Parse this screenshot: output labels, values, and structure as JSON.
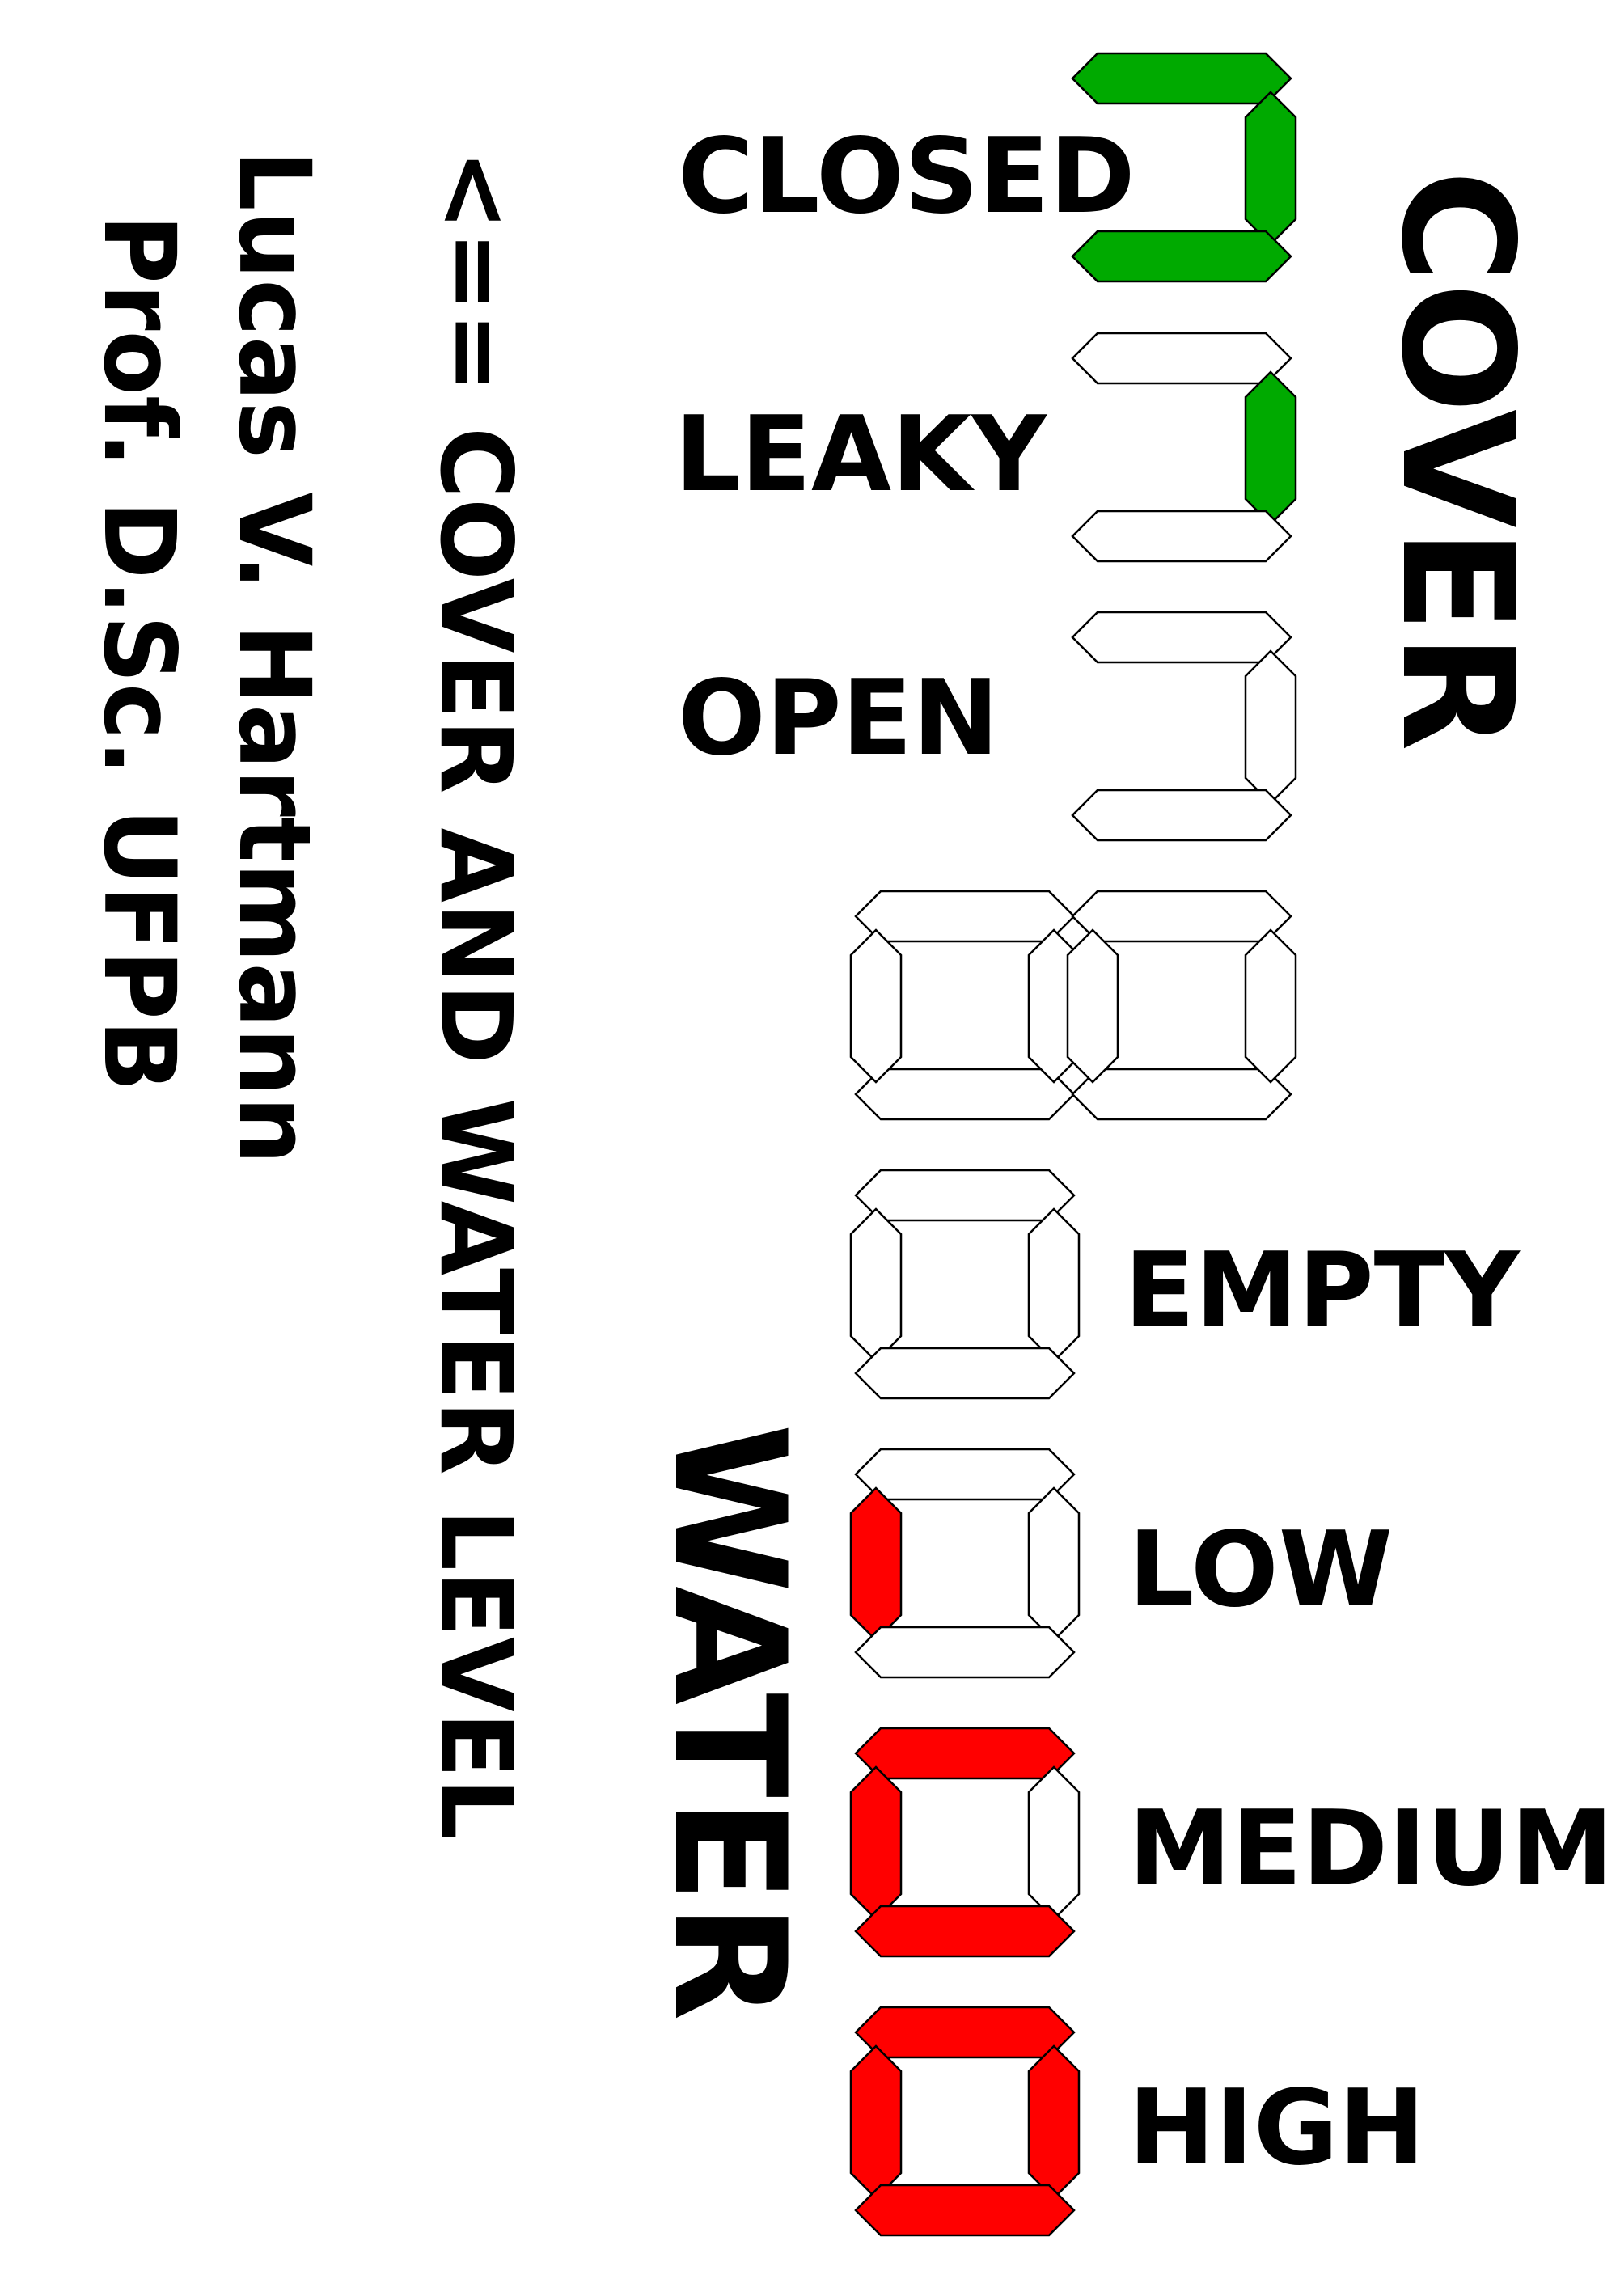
{
  "titles": {
    "cover": "COVER",
    "water": "WATER",
    "main": "<== COVER AND WATER LEVEL",
    "author": "Lucas V. Hartmann",
    "supervisor": "Prof. D.Sc. UFPB"
  },
  "cover_states": [
    {
      "label": "CLOSED",
      "segments_on": [
        "a",
        "b",
        "c"
      ]
    },
    {
      "label": "LEAKY",
      "segments_on": [
        "b"
      ]
    },
    {
      "label": "OPEN",
      "segments_on": []
    }
  ],
  "water_states": [
    {
      "label": "EMPTY",
      "segments_on": []
    },
    {
      "label": "LOW",
      "segments_on": [
        "e"
      ]
    },
    {
      "label": "MEDIUM",
      "segments_on": [
        "a",
        "e",
        "f"
      ]
    },
    {
      "label": "HIGH",
      "segments_on": [
        "a",
        "b",
        "c",
        "e",
        "f"
      ]
    }
  ],
  "colors": {
    "cover_on": "#00aa00",
    "water_on": "#ff0000",
    "off": "#ffffff",
    "outline": "#000000"
  }
}
